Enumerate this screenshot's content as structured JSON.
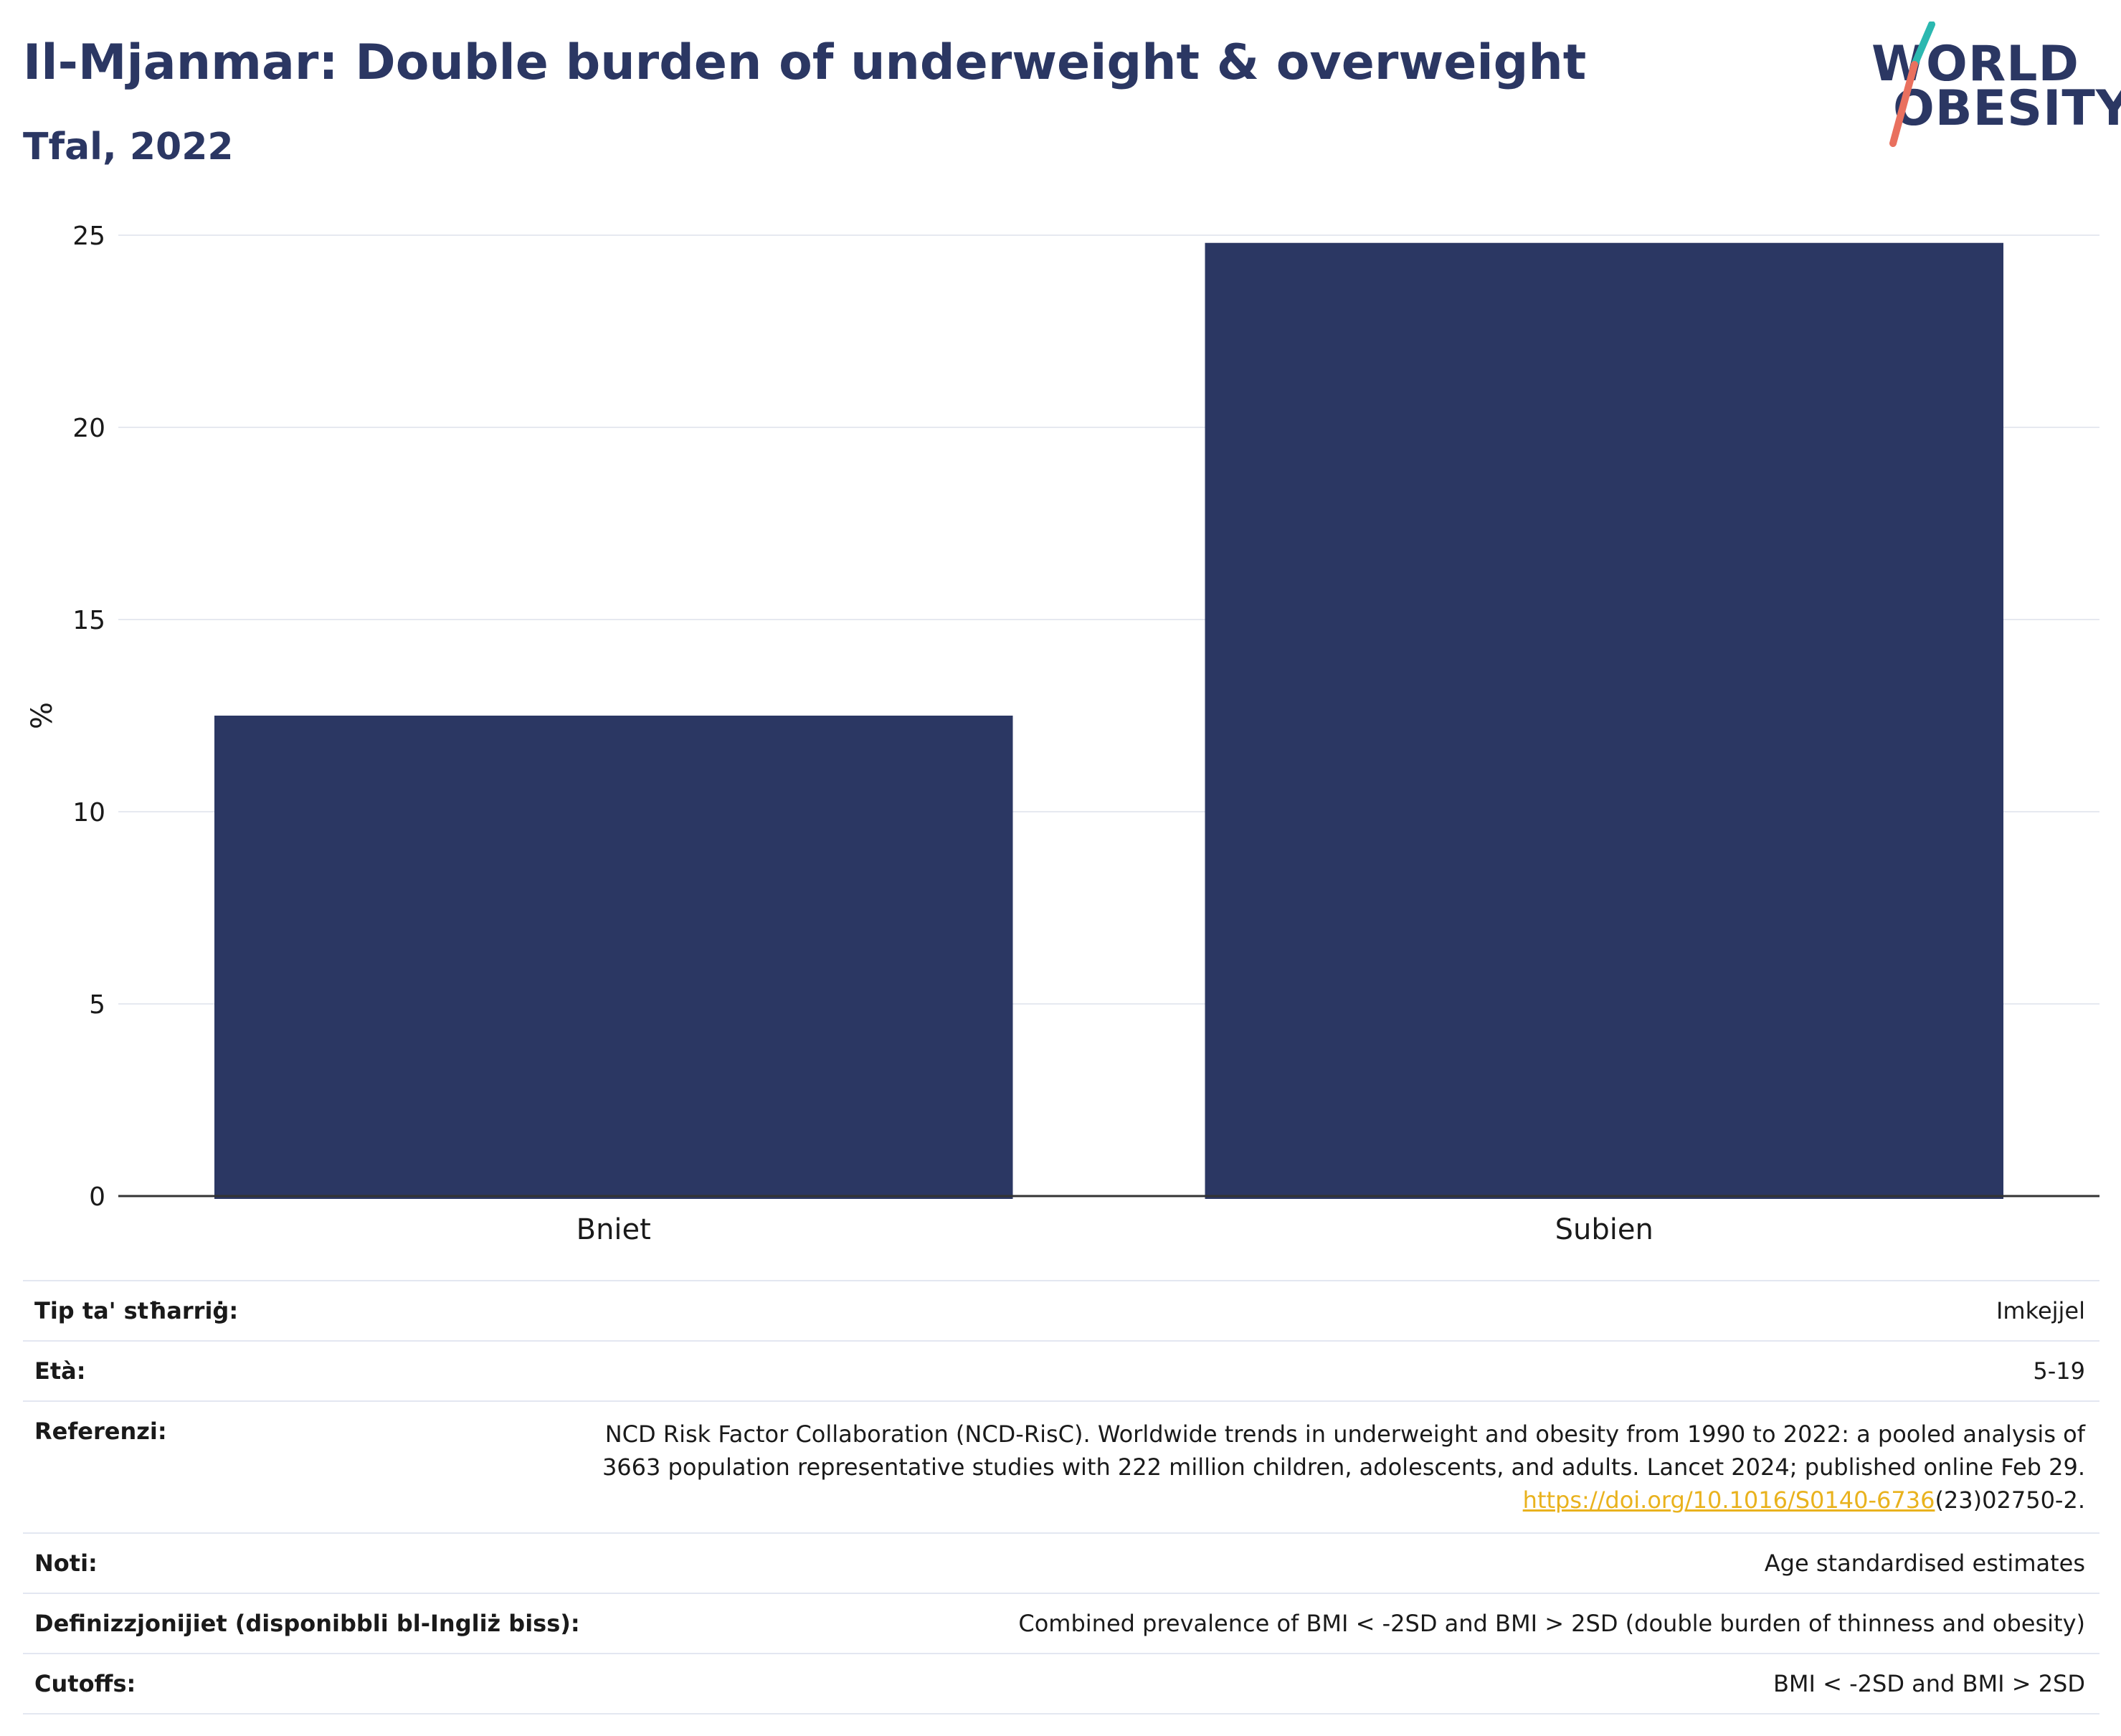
{
  "title": "Il-Mjanmar: Double burden of underweight & overweight",
  "subtitle": "Tfal, 2022",
  "logo": {
    "line1": "WORLD",
    "line2": "OBESITY"
  },
  "colors": {
    "bar": "#2b3763",
    "title": "#2b3763",
    "link": "#e9b21d",
    "logo_teal": "#2bb8b0",
    "logo_coral": "#e9705e"
  },
  "chart_data": {
    "type": "bar",
    "categories": [
      "Bniet",
      "Subien"
    ],
    "values": [
      12.5,
      24.8
    ],
    "ylabel": "%",
    "xlabel": "",
    "ylim": [
      0,
      25
    ],
    "yticks": [
      0,
      5,
      10,
      15,
      20,
      25
    ],
    "grid": true,
    "legend": "none"
  },
  "details": {
    "survey_label": "Tip ta' stħarriġ:",
    "survey_value": "Imkejjel",
    "age_label": "Età:",
    "age_value": "5-19",
    "ref_label": "Referenzi:",
    "ref_line1": "NCD Risk Factor Collaboration (NCD-RisC). Worldwide trends in underweight and obesity from 1990 to 2022: a pooled analysis of",
    "ref_line2": "3663 population representative studies with 222 million children, adolescents, and adults. Lancet 2024; published online Feb 29.",
    "ref_link": "https://doi.org/10.1016/S0140-6736",
    "ref_tail": "(23)02750-2.",
    "notes_label": "Noti:",
    "notes_value": "Age standardised estimates",
    "def_label": "Definizzjonijiet (disponibbli bl-Ingliż biss):",
    "def_value": "Combined prevalence of BMI < -2SD and BMI > 2SD (double burden of thinness and obesity)",
    "cutoff_label": "Cutoffs:",
    "cutoff_value": "BMI < -2SD and BMI > 2SD"
  }
}
